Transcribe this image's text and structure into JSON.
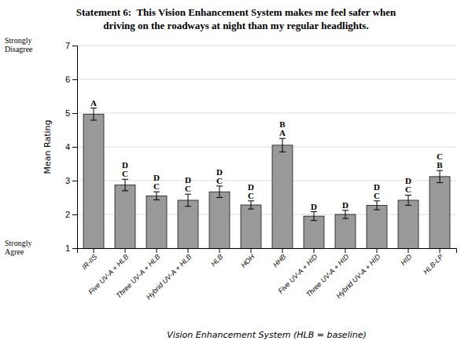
{
  "chart_data": {
    "type": "bar",
    "title": [
      "Statement 6:  This Vision Enhancement System makes me feel safer when",
      "driving on the roadways at night than my regular headlights."
    ],
    "x_label": "Vision Enhancement System (HLB = baseline)",
    "y_label": "Mean Rating",
    "categories": [
      "IR-IIS",
      "Five UV-A + HLB",
      "Three UV-A + HLB",
      "Hybrid UV-A + HLB",
      "HLB",
      "HOH",
      "HHB",
      "Five UV-A + HID",
      "Three UV-A + HID",
      "Hybrid UV-A + HID",
      "HID",
      "HLB-LP"
    ],
    "values": [
      4.97,
      2.87,
      2.55,
      2.42,
      2.67,
      2.28,
      4.05,
      1.95,
      2.0,
      2.27,
      2.42,
      3.12
    ],
    "errors": [
      0.18,
      0.17,
      0.12,
      0.18,
      0.17,
      0.12,
      0.2,
      0.13,
      0.12,
      0.13,
      0.15,
      0.18
    ],
    "letter_labels": [
      [
        "A"
      ],
      [
        "D",
        "C"
      ],
      [
        "D",
        "C"
      ],
      [
        "D",
        "C"
      ],
      [
        "D",
        "C"
      ],
      [
        "D",
        "C"
      ],
      [
        "B",
        "A"
      ],
      [
        "D"
      ],
      [
        "D"
      ],
      [
        "D",
        "C"
      ],
      [
        "D",
        "C"
      ],
      [
        "C",
        "B"
      ]
    ],
    "annotations": [
      {
        "text": [
          "Strongly",
          "Disagree"
        ],
        "y": 7
      },
      {
        "text": [
          "Strongly",
          "Agree"
        ],
        "y": 1
      }
    ],
    "color": "#999999",
    "ylim": [
      1,
      7
    ],
    "yticks": [
      1,
      2,
      3,
      4,
      5,
      6,
      7
    ],
    "grid": true
  }
}
